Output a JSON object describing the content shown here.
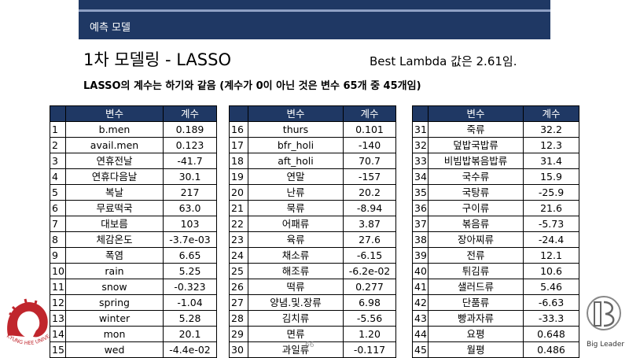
{
  "header": {
    "section_label": "예측 모델"
  },
  "title": "1차 모델링 - LASSO",
  "lambda_note": "Best Lambda 값은 2.61임.",
  "subtitle": "LASSO의 계수는 하기와 같음 (계수가 0이 아닌 것은 변수 65개 중 45개임)",
  "table_headers": {
    "variable": "변수",
    "coefficient": "계수"
  },
  "tables": [
    [
      [
        "1",
        "b.men",
        "0.189"
      ],
      [
        "2",
        "avail.men",
        "0.123"
      ],
      [
        "3",
        "연휴전날",
        "-41.7"
      ],
      [
        "4",
        "연휴다음날",
        "30.1"
      ],
      [
        "5",
        "복날",
        "217"
      ],
      [
        "6",
        "무료떡국",
        "63.0"
      ],
      [
        "7",
        "대보름",
        "103"
      ],
      [
        "8",
        "체감온도",
        "-3.7e-03"
      ],
      [
        "9",
        "폭염",
        "6.65"
      ],
      [
        "10",
        "rain",
        "5.25"
      ],
      [
        "11",
        "snow",
        "-0.323"
      ],
      [
        "12",
        "spring",
        "-1.04"
      ],
      [
        "13",
        "winter",
        "5.28"
      ],
      [
        "14",
        "mon",
        "20.1"
      ],
      [
        "15",
        "wed",
        "-4.4e-02"
      ]
    ],
    [
      [
        "16",
        "thurs",
        "0.101"
      ],
      [
        "17",
        "bfr_holi",
        "-140"
      ],
      [
        "18",
        "aft_holi",
        "70.7"
      ],
      [
        "19",
        "연말",
        "-157"
      ],
      [
        "20",
        "난류",
        "20.2"
      ],
      [
        "21",
        "묵류",
        "-8.94"
      ],
      [
        "22",
        "어패류",
        "3.87"
      ],
      [
        "23",
        "육류",
        "27.6"
      ],
      [
        "24",
        "채소류",
        "-6.15"
      ],
      [
        "25",
        "해조류",
        "-6.2e-02"
      ],
      [
        "26",
        "떡류",
        "0.277"
      ],
      [
        "27",
        "양념.및.장류",
        "6.98"
      ],
      [
        "28",
        "김치류",
        "-5.56"
      ],
      [
        "29",
        "면류",
        "1.20"
      ],
      [
        "30",
        "과일류",
        "-0.117"
      ]
    ],
    [
      [
        "31",
        "죽류",
        "32.2"
      ],
      [
        "32",
        "덮밥국밥류",
        "12.3"
      ],
      [
        "33",
        "비빔밥볶음밥류",
        "31.4"
      ],
      [
        "34",
        "국수류",
        "15.9"
      ],
      [
        "35",
        "국탕류",
        "-25.9"
      ],
      [
        "36",
        "구이류",
        "21.6"
      ],
      [
        "37",
        "볶음류",
        "-5.73"
      ],
      [
        "38",
        "장아찌류",
        "-24.4"
      ],
      [
        "39",
        "전류",
        "12.1"
      ],
      [
        "40",
        "튀김류",
        "10.6"
      ],
      [
        "41",
        "샐러드류",
        "5.46"
      ],
      [
        "42",
        "단품류",
        "-6.63"
      ],
      [
        "43",
        "빵과자류",
        "-33.3"
      ],
      [
        "44",
        "요평",
        "0.648"
      ],
      [
        "45",
        "월평",
        "0.486"
      ]
    ]
  ],
  "page_number": "66",
  "footer_right": "Big Leader",
  "logo_left_text": "KYUNG HEE UNIVERSITY",
  "colors": {
    "header": "#1f3864",
    "table_header": "#1f3864",
    "logo_red": "#c0262d"
  }
}
